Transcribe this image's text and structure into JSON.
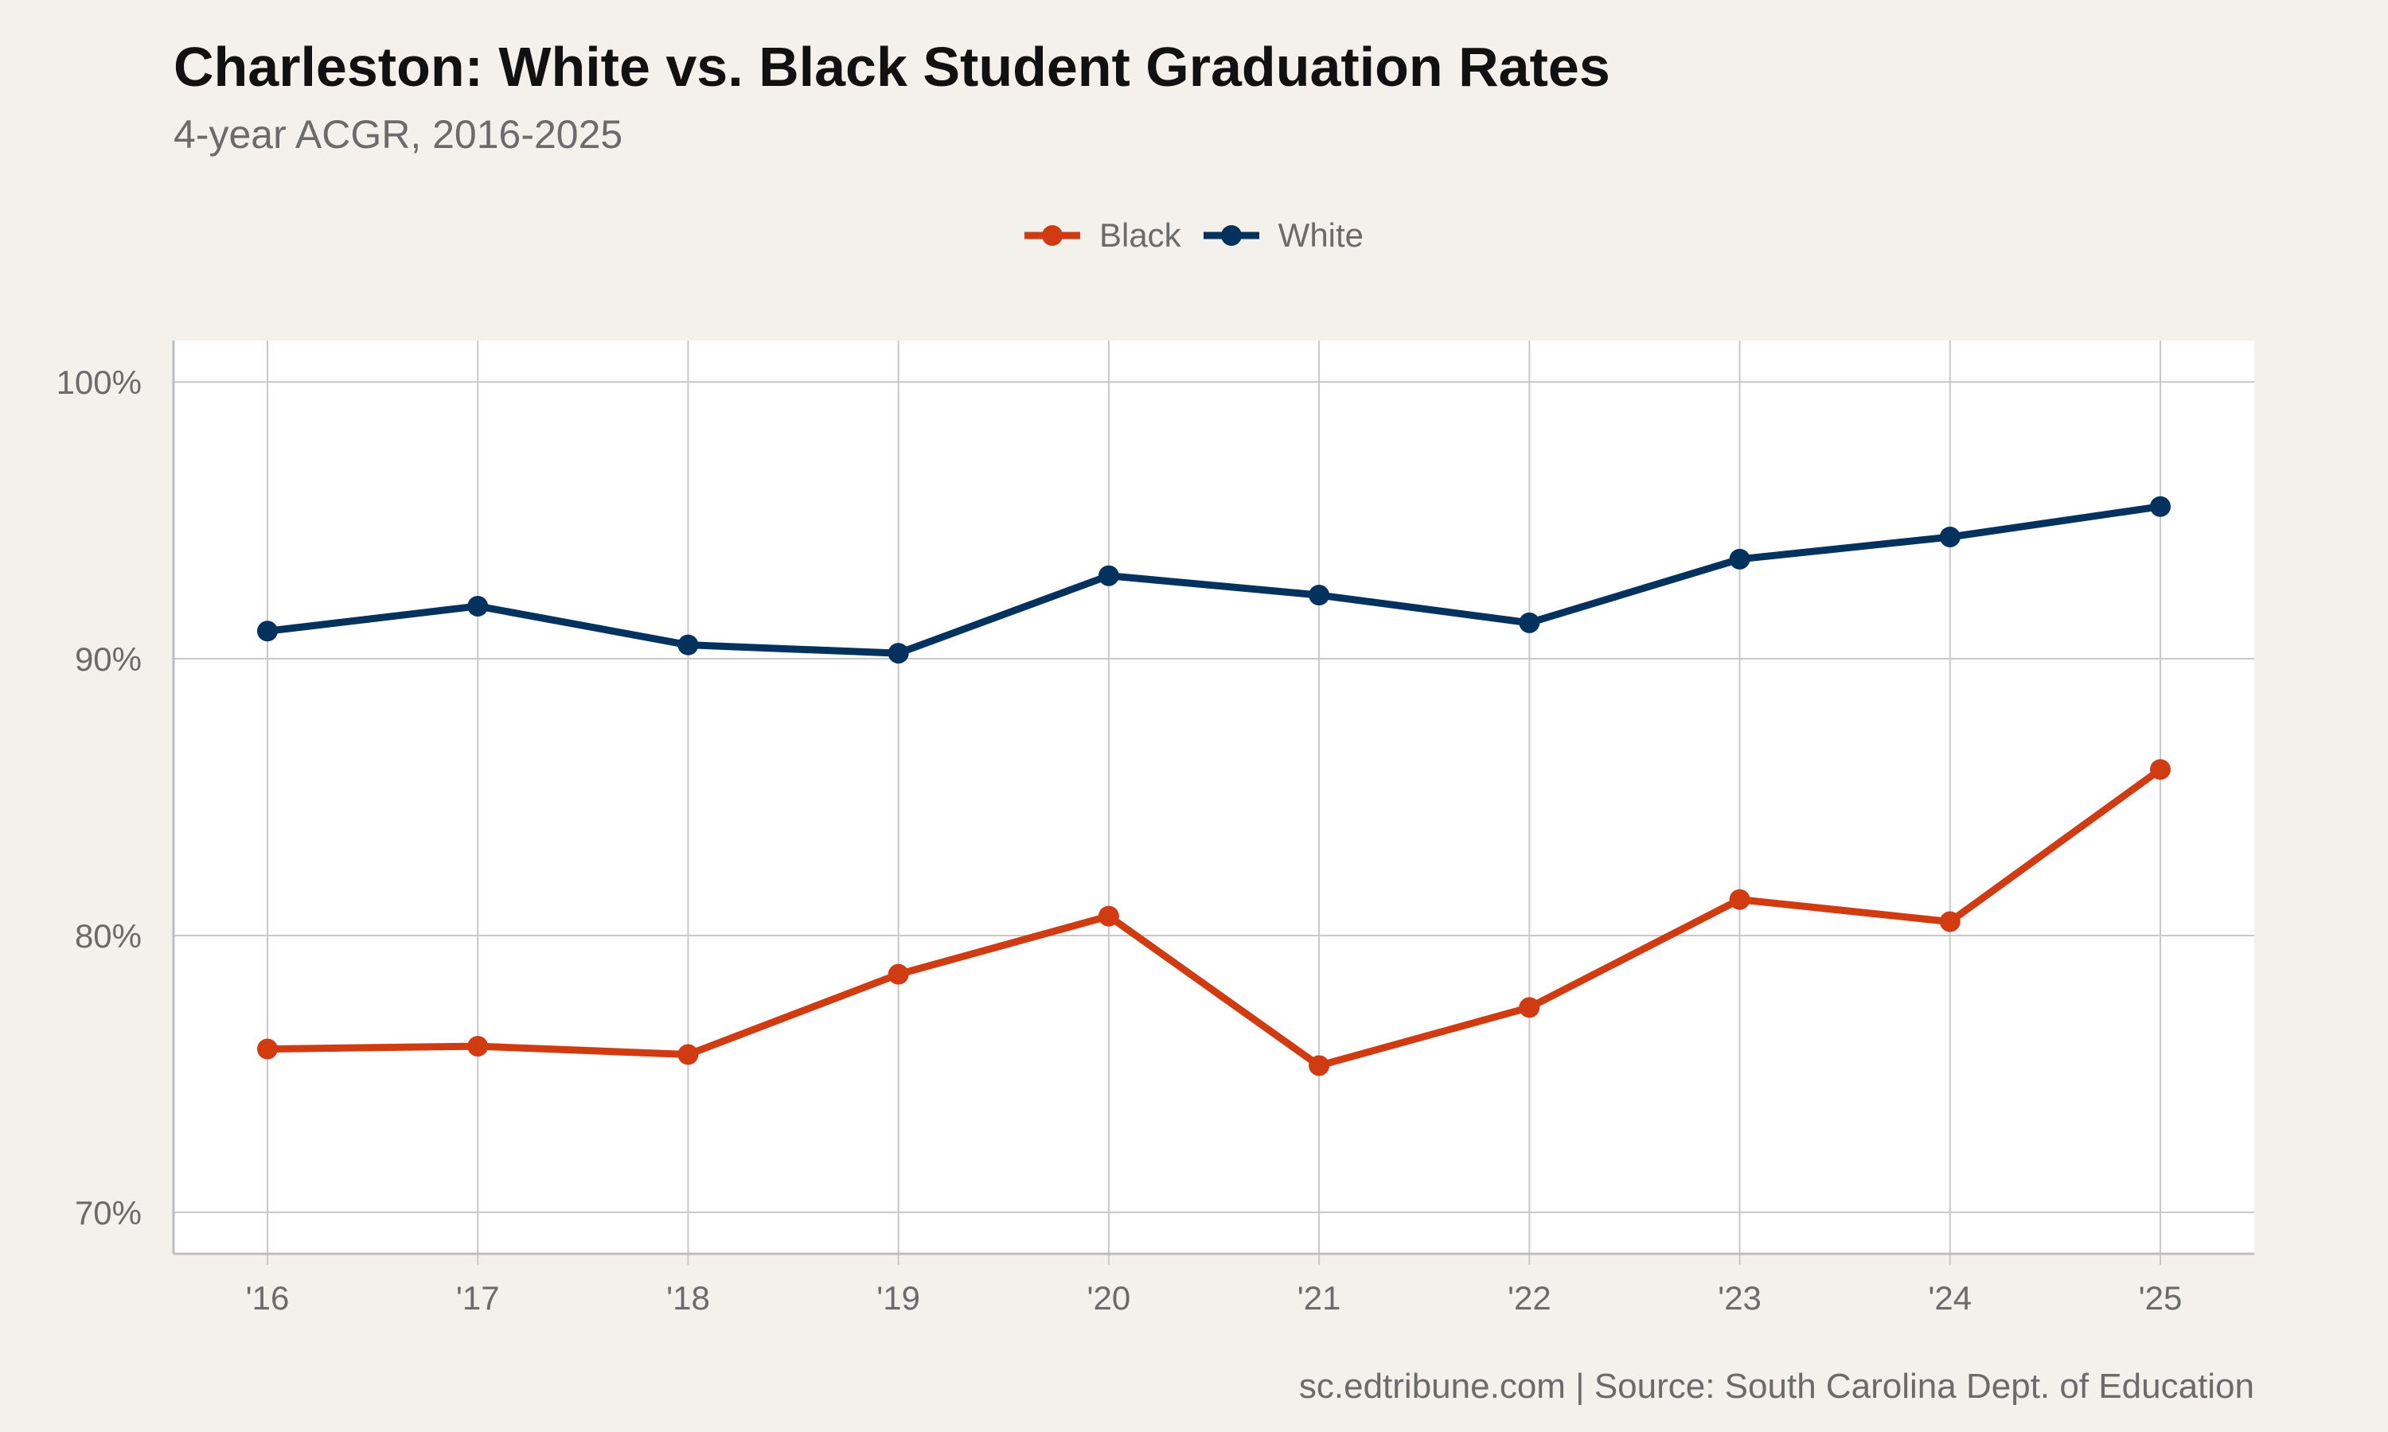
{
  "chart_data": {
    "type": "line",
    "title": "Charleston: White vs. Black Student Graduation Rates",
    "subtitle": "4-year ACGR, 2016-2025",
    "caption": "sc.edtribune.com | Source: South Carolina Dept. of Education",
    "xlabel": "",
    "ylabel": "",
    "categories": [
      "'16",
      "'17",
      "'18",
      "'19",
      "'20",
      "'21",
      "'22",
      "'23",
      "'24",
      "'25"
    ],
    "ylim": [
      68.5,
      101.5
    ],
    "y_ticks": [
      70,
      80,
      90,
      100
    ],
    "y_tick_labels": [
      "70%",
      "80%",
      "90%",
      "100%"
    ],
    "grid": true,
    "legend_position": "top",
    "series": [
      {
        "name": "Black",
        "color": "#d13b12",
        "values": [
          75.9,
          76.0,
          75.7,
          78.6,
          80.7,
          75.3,
          77.4,
          81.3,
          80.5,
          86.0
        ]
      },
      {
        "name": "White",
        "color": "#04325f",
        "values": [
          91.0,
          91.9,
          90.5,
          90.2,
          93.0,
          92.3,
          91.3,
          93.6,
          94.4,
          95.5
        ]
      }
    ],
    "colors": {
      "background": "#f4f1ec",
      "panel": "#ffffff",
      "grid": "#c8c8c8",
      "text": "#6b6b6b"
    }
  }
}
